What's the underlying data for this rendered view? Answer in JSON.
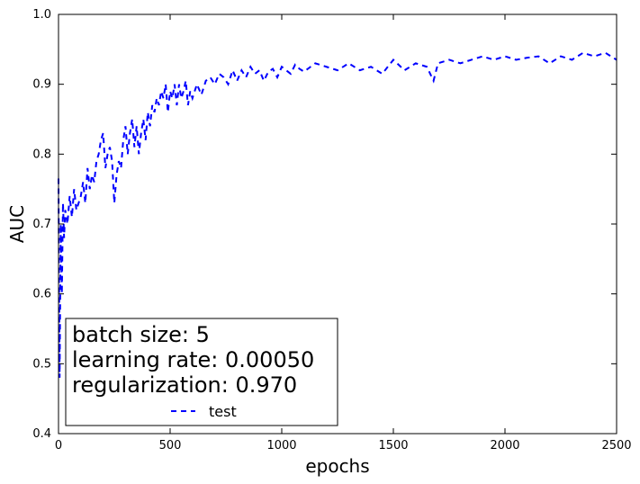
{
  "chart_data": {
    "type": "line",
    "xlabel": "epochs",
    "ylabel": "AUC",
    "xlim": [
      0,
      2500
    ],
    "ylim": [
      0.4,
      1.0
    ],
    "x_ticks": [
      "0",
      "500",
      "1000",
      "1500",
      "2000",
      "2500"
    ],
    "y_ticks": [
      "0.4",
      "0.5",
      "0.6",
      "0.7",
      "0.8",
      "0.9",
      "1.0"
    ],
    "grid": false,
    "legend": {
      "placement": "lower-left",
      "title_lines": [
        "batch size: 5",
        "learning rate: 0.00050",
        "regularization: 0.970"
      ],
      "entries": [
        "test"
      ]
    },
    "series": [
      {
        "name": "test",
        "color": "#0000ff",
        "linestyle": "dashed",
        "x": [
          0,
          5,
          10,
          15,
          20,
          25,
          30,
          40,
          50,
          60,
          70,
          80,
          90,
          100,
          110,
          120,
          130,
          140,
          150,
          160,
          170,
          180,
          190,
          200,
          210,
          220,
          230,
          240,
          250,
          260,
          270,
          280,
          290,
          300,
          310,
          320,
          330,
          340,
          350,
          360,
          370,
          380,
          390,
          400,
          410,
          420,
          430,
          440,
          450,
          460,
          470,
          480,
          490,
          500,
          510,
          520,
          530,
          540,
          550,
          560,
          570,
          580,
          590,
          600,
          620,
          640,
          660,
          680,
          700,
          720,
          740,
          760,
          780,
          800,
          820,
          840,
          860,
          880,
          900,
          920,
          940,
          960,
          980,
          1000,
          1020,
          1040,
          1060,
          1080,
          1100,
          1150,
          1200,
          1250,
          1300,
          1350,
          1400,
          1450,
          1500,
          1550,
          1600,
          1650,
          1680,
          1700,
          1750,
          1800,
          1850,
          1900,
          1950,
          2000,
          2050,
          2100,
          2150,
          2200,
          2250,
          2300,
          2350,
          2400,
          2450,
          2500
        ],
        "y": [
          0.765,
          0.48,
          0.7,
          0.6,
          0.73,
          0.68,
          0.72,
          0.7,
          0.74,
          0.71,
          0.75,
          0.72,
          0.73,
          0.74,
          0.76,
          0.73,
          0.78,
          0.75,
          0.77,
          0.76,
          0.79,
          0.8,
          0.82,
          0.83,
          0.78,
          0.8,
          0.81,
          0.79,
          0.73,
          0.77,
          0.79,
          0.78,
          0.82,
          0.84,
          0.8,
          0.83,
          0.85,
          0.81,
          0.84,
          0.8,
          0.83,
          0.85,
          0.82,
          0.86,
          0.84,
          0.87,
          0.86,
          0.88,
          0.87,
          0.89,
          0.88,
          0.9,
          0.86,
          0.89,
          0.88,
          0.9,
          0.87,
          0.9,
          0.88,
          0.89,
          0.905,
          0.87,
          0.89,
          0.88,
          0.9,
          0.885,
          0.905,
          0.91,
          0.9,
          0.915,
          0.91,
          0.9,
          0.92,
          0.905,
          0.92,
          0.91,
          0.925,
          0.915,
          0.92,
          0.905,
          0.918,
          0.922,
          0.91,
          0.925,
          0.92,
          0.915,
          0.928,
          0.922,
          0.918,
          0.93,
          0.925,
          0.92,
          0.93,
          0.92,
          0.925,
          0.915,
          0.935,
          0.92,
          0.93,
          0.925,
          0.905,
          0.93,
          0.935,
          0.93,
          0.935,
          0.94,
          0.935,
          0.94,
          0.935,
          0.938,
          0.94,
          0.93,
          0.94,
          0.935,
          0.945,
          0.94,
          0.945,
          0.935
        ]
      }
    ]
  }
}
